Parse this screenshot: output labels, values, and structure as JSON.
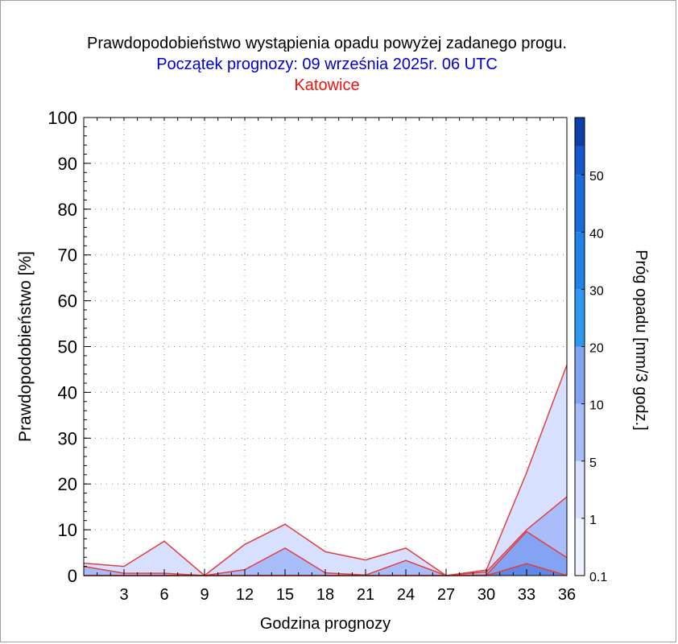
{
  "header": {
    "title": "Prawdopodobieństwo wystąpienia opadu powyżej zadanego progu.",
    "subtitle": "Początek prognozy: 09 września 2025r. 06 UTC",
    "location": "Katowice"
  },
  "chart_data": {
    "type": "area",
    "xlabel": "Godzina prognozy",
    "ylabel": "Prawdopodobieństwo [%]",
    "colorbar_label": "Próg opadu [mm/3 godz.]",
    "xlim": [
      0,
      36
    ],
    "ylim": [
      0,
      100
    ],
    "x_ticks": [
      3,
      6,
      9,
      12,
      15,
      18,
      21,
      24,
      27,
      30,
      33,
      36
    ],
    "y_ticks": [
      0,
      10,
      20,
      30,
      40,
      50,
      60,
      70,
      80,
      90,
      100
    ],
    "grid": true,
    "x": [
      0,
      3,
      6,
      9,
      12,
      15,
      18,
      21,
      24,
      27,
      30,
      33,
      36
    ],
    "series": [
      {
        "name": "0.1",
        "values": [
          2.7,
          2.0,
          7.5,
          0,
          6.8,
          11.2,
          5.2,
          3.4,
          6.0,
          0,
          1.2,
          22.5,
          46.0
        ]
      },
      {
        "name": "1",
        "values": [
          2.0,
          0.5,
          0.5,
          0,
          1.3,
          6.0,
          0.6,
          0.1,
          3.3,
          0,
          0.8,
          10.0,
          17.2
        ]
      },
      {
        "name": "5",
        "values": [
          0,
          0,
          0,
          0,
          0,
          0,
          0,
          0,
          0,
          0,
          0.1,
          9.6,
          3.9
        ]
      },
      {
        "name": "10",
        "values": [
          0,
          0,
          0,
          0,
          0,
          0,
          0,
          0,
          0,
          0,
          0,
          2.6,
          0
        ]
      }
    ],
    "colorbar": {
      "labels": [
        "0.1",
        "1",
        "5",
        "10",
        "20",
        "30",
        "40",
        "50"
      ],
      "levels": [
        0.1,
        1,
        5,
        10,
        20,
        30,
        40,
        50,
        60
      ],
      "colors": [
        "#eff2ff",
        "#d8e0ff",
        "#a9bdfa",
        "#84a3f2",
        "#2e97f0",
        "#1e82e8",
        "#196cd9",
        "#1559cc",
        "#0c3fa8"
      ]
    },
    "fill_colors": [
      "#d8e0ff",
      "#a9bdfa",
      "#84a3f2",
      "#5f87e6"
    ],
    "line_color": "#e04040"
  }
}
